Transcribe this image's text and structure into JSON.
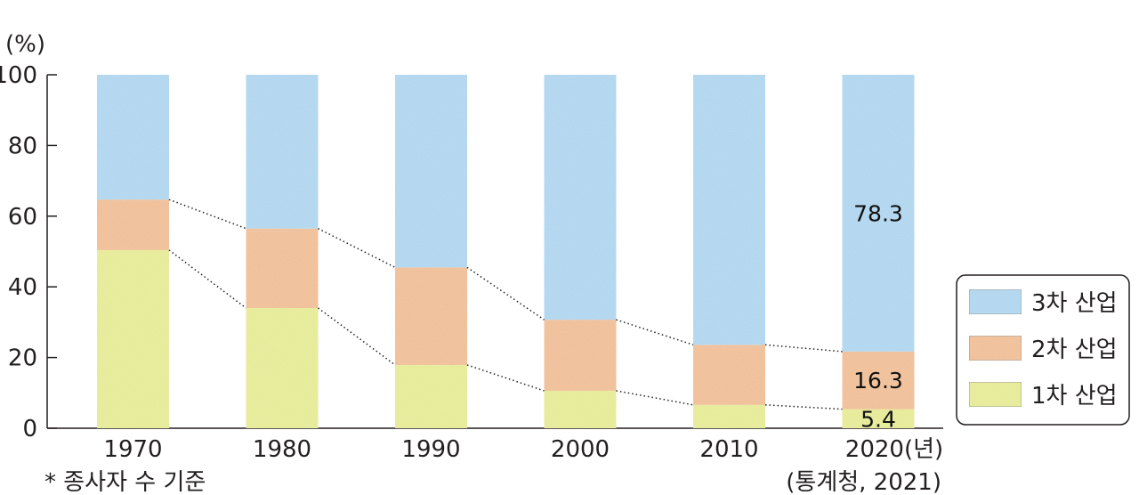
{
  "chart_data": {
    "type": "bar",
    "stacked": true,
    "categories": [
      "1970",
      "1980",
      "1990",
      "2000",
      "2010",
      "2020(년)"
    ],
    "series": [
      {
        "name": "1차 산업",
        "color": "#e4e98a",
        "values": [
          50.4,
          34.0,
          17.9,
          10.6,
          6.6,
          5.4
        ]
      },
      {
        "name": "2차 산업",
        "color": "#efb98b",
        "values": [
          14.3,
          22.5,
          27.6,
          20.1,
          17.0,
          16.3
        ]
      },
      {
        "name": "3차 산업",
        "color": "#a9d3ee",
        "values": [
          35.3,
          43.5,
          54.5,
          69.3,
          76.4,
          78.3
        ]
      }
    ],
    "data_labels": [
      {
        "category": "2020(년)",
        "series": "3차 산업",
        "text": "78.3"
      },
      {
        "category": "2020(년)",
        "series": "2차 산업",
        "text": "16.3"
      },
      {
        "category": "2020(년)",
        "series": "1차 산업",
        "text": "5.4"
      }
    ],
    "ylabel": "(%)",
    "ylim": [
      0,
      100
    ],
    "yticks": [
      "0",
      "20",
      "40",
      "60",
      "80",
      "100"
    ],
    "legend": {
      "placement": "right",
      "order": [
        "3차 산업",
        "2차 산업",
        "1차 산업"
      ]
    },
    "connector_lines": "dotted",
    "grid": false
  },
  "notes": {
    "basis": "* 종사자 수 기준",
    "source": "(통계청, 2021)"
  }
}
